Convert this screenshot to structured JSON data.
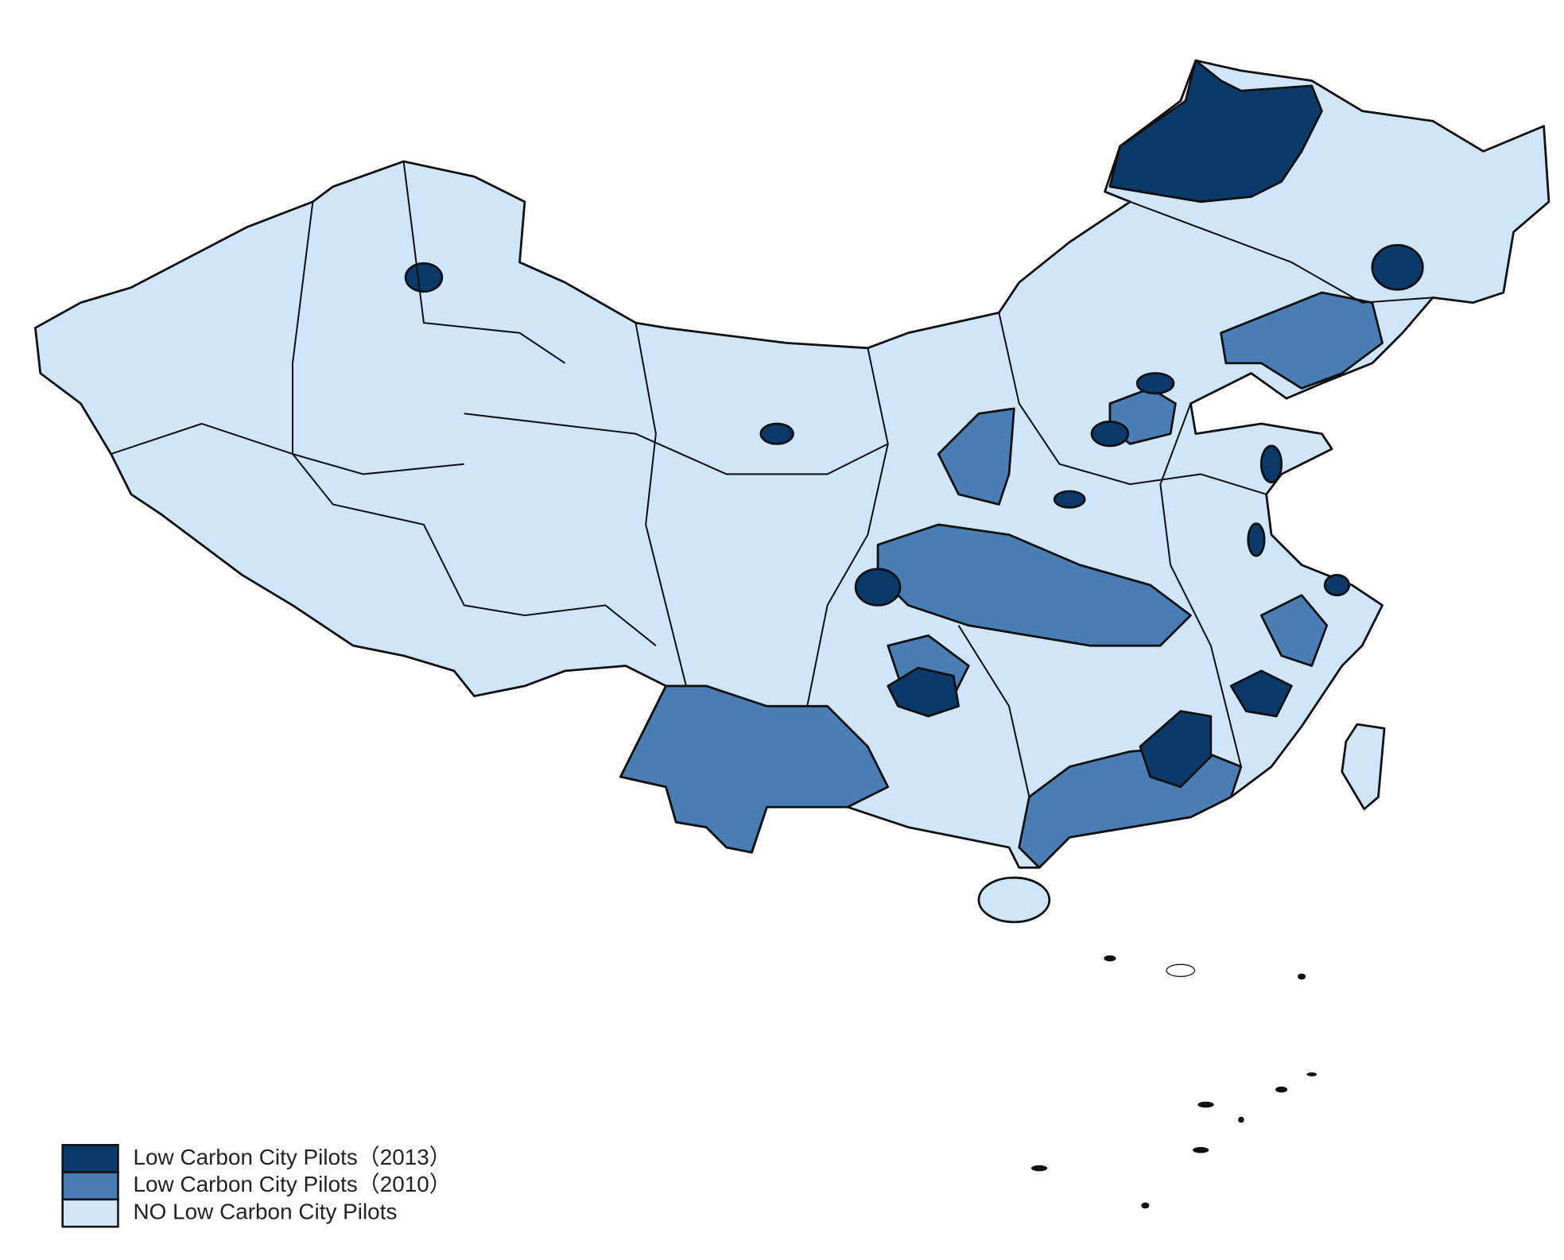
{
  "legend": {
    "items": [
      {
        "label": "Low Carbon City Pilots（2013）",
        "color": "#0b3a6a"
      },
      {
        "label": "Low Carbon City Pilots（2010）",
        "color": "#4a7db3"
      },
      {
        "label": "NO Low Carbon City Pilots",
        "color": "#cfe5f9"
      }
    ]
  }
}
